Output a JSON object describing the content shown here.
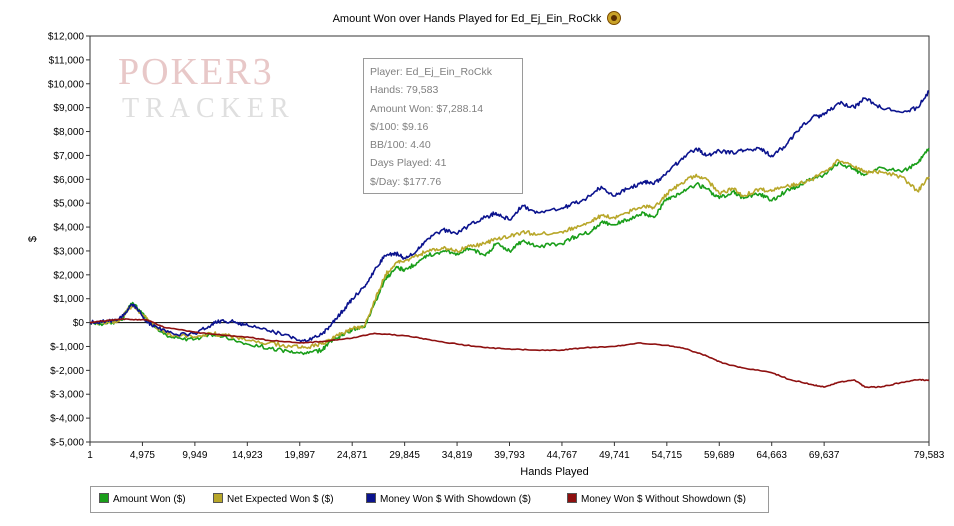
{
  "watermark": {
    "line1": "POKER3",
    "line2": "TRACKER"
  },
  "tooltip": {
    "player": "Player: Ed_Ej_Ein_RoCkk",
    "hands": "Hands: 79,583",
    "amount_won": "Amount Won: $7,288.14",
    "per100": "$/100: $9.16",
    "bb100": "BB/100: 4.40",
    "days_played": "Days Played: 41",
    "per_day": "$/Day: $177.76"
  },
  "chart_data": {
    "type": "line",
    "title": "Amount Won over Hands Played for Ed_Ej_Ein_RoCkk",
    "xlabel": "Hands Played",
    "ylabel": "$",
    "xlim": [
      1,
      79583
    ],
    "ylim": [
      -5000,
      12000
    ],
    "x_ticks": [
      1,
      4975,
      9949,
      14923,
      19897,
      24871,
      29845,
      34819,
      39793,
      44767,
      49741,
      54715,
      59689,
      64663,
      69637,
      79583
    ],
    "x_tick_labels": [
      "1",
      "4,975",
      "9,949",
      "14,923",
      "19,897",
      "24,871",
      "29,845",
      "34,819",
      "39,793",
      "44,767",
      "49,741",
      "54,715",
      "59,689",
      "64,663",
      "69,637",
      "79,583"
    ],
    "y_ticks": [
      12000,
      11000,
      10000,
      9000,
      8000,
      7000,
      6000,
      5000,
      4000,
      3000,
      2000,
      1000,
      0,
      -1000,
      -2000,
      -3000,
      -4000,
      -5000
    ],
    "y_tick_labels": [
      "$12,000",
      "$11,000",
      "$10,000",
      "$9,000",
      "$8,000",
      "$7,000",
      "$6,000",
      "$5,000",
      "$4,000",
      "$3,000",
      "$2,000",
      "$1,000",
      "$0",
      "$-1,000",
      "$-2,000",
      "$-3,000",
      "$-4,000",
      "$-5,000"
    ],
    "grid": false,
    "legend_position": "bottom",
    "series": [
      {
        "name": "Amount Won ($)",
        "color": "#1a9e1a",
        "x": [
          1,
          1500,
          3000,
          3500,
          4000,
          4500,
          5500,
          6500,
          8000,
          9949,
          11500,
          13000,
          14923,
          17000,
          19000,
          20500,
          22000,
          23000,
          24000,
          24871,
          26000,
          27000,
          28000,
          29000,
          29845,
          31000,
          32000,
          33500,
          34819,
          36000,
          37500,
          38500,
          39793,
          41000,
          42500,
          44767,
          46000,
          47500,
          48500,
          49741,
          51000,
          52500,
          53500,
          54715,
          56000,
          57500,
          58500,
          59689,
          61000,
          62000,
          63500,
          64663,
          66000,
          67000,
          68500,
          69637,
          71000,
          72500,
          73500,
          75000,
          77000,
          78500,
          79583
        ],
        "y": [
          0,
          -50,
          100,
          500,
          800,
          600,
          100,
          -350,
          -650,
          -700,
          -500,
          -650,
          -900,
          -1050,
          -1250,
          -1300,
          -1150,
          -750,
          -500,
          -300,
          -200,
          800,
          1800,
          2300,
          2200,
          2500,
          2800,
          3000,
          2900,
          3100,
          2800,
          3300,
          3000,
          3400,
          3200,
          3300,
          3600,
          3800,
          4200,
          4100,
          4300,
          4600,
          4400,
          5200,
          5400,
          5800,
          5600,
          5200,
          5500,
          5200,
          5400,
          5100,
          5500,
          5700,
          6000,
          6200,
          6700,
          6400,
          6200,
          6500,
          6300,
          6700,
          7300
        ]
      },
      {
        "name": "Net Expected Won $ ($)",
        "color": "#b8a72a",
        "x": [
          1,
          1500,
          3000,
          3500,
          4000,
          4500,
          5500,
          6500,
          8000,
          9949,
          11500,
          13000,
          14923,
          17000,
          19000,
          20500,
          22000,
          23000,
          24000,
          24871,
          26000,
          27000,
          28000,
          29000,
          29845,
          31000,
          32000,
          33500,
          34819,
          36000,
          37500,
          38500,
          39793,
          41000,
          42500,
          44767,
          46000,
          47500,
          48500,
          49741,
          51000,
          52500,
          53500,
          54715,
          56000,
          57500,
          58500,
          59689,
          61000,
          62000,
          63500,
          64663,
          66000,
          67000,
          68500,
          69637,
          71000,
          72500,
          73500,
          75000,
          77000,
          78500,
          79583
        ],
        "y": [
          0,
          -50,
          150,
          500,
          700,
          550,
          100,
          -300,
          -550,
          -600,
          -450,
          -550,
          -750,
          -850,
          -1000,
          -1050,
          -900,
          -650,
          -450,
          -250,
          -150,
          900,
          2000,
          2500,
          2600,
          2800,
          3000,
          3100,
          3000,
          3200,
          3300,
          3500,
          3600,
          3800,
          3700,
          3800,
          4000,
          4200,
          4500,
          4400,
          4600,
          4900,
          4800,
          5400,
          5800,
          6200,
          6000,
          5400,
          5600,
          5300,
          5600,
          5500,
          5700,
          5800,
          6000,
          6300,
          6800,
          6500,
          6300,
          6300,
          6100,
          5500,
          6100
        ]
      },
      {
        "name": "Money Won $ With Showdown ($)",
        "color": "#0b138e",
        "x": [
          1,
          1500,
          3000,
          4000,
          4500,
          5500,
          6500,
          8000,
          9949,
          11500,
          12500,
          14000,
          14923,
          17000,
          19000,
          20500,
          22000,
          23000,
          24000,
          24871,
          26000,
          27000,
          28000,
          29000,
          29845,
          31000,
          32000,
          33500,
          34819,
          36000,
          37500,
          38500,
          39793,
          41000,
          42500,
          44767,
          46000,
          47500,
          48500,
          49741,
          51000,
          52500,
          53500,
          54715,
          56000,
          57500,
          58500,
          59689,
          61000,
          62000,
          63500,
          64663,
          66000,
          67000,
          68500,
          69637,
          71000,
          72500,
          73500,
          75000,
          77000,
          78500,
          79583
        ],
        "y": [
          0,
          50,
          200,
          750,
          550,
          0,
          -250,
          -500,
          -450,
          -100,
          100,
          0,
          -100,
          -350,
          -600,
          -800,
          -500,
          0,
          500,
          1000,
          1500,
          2200,
          2800,
          2900,
          2700,
          3000,
          3500,
          3900,
          3700,
          4100,
          4400,
          4600,
          4300,
          4900,
          4600,
          4800,
          5000,
          5300,
          5700,
          5300,
          5600,
          5900,
          5800,
          6300,
          6800,
          7300,
          7000,
          7200,
          7100,
          7200,
          7300,
          7000,
          7400,
          8000,
          8600,
          8700,
          9200,
          9000,
          9400,
          9000,
          8800,
          9000,
          9700
        ]
      },
      {
        "name": "Money Won $ Without Showdown ($)",
        "color": "#8e1010",
        "x": [
          1,
          2000,
          3500,
          5500,
          7000,
          9949,
          12000,
          14923,
          17000,
          19897,
          22000,
          24871,
          27000,
          29845,
          32000,
          34819,
          37500,
          39793,
          42000,
          44767,
          47000,
          49741,
          52000,
          54715,
          56500,
          58500,
          60000,
          62000,
          64663,
          66500,
          68500,
          69637,
          71000,
          72500,
          73500,
          75000,
          77000,
          78500,
          79583
        ],
        "y": [
          0,
          100,
          150,
          100,
          -200,
          -400,
          -500,
          -600,
          -750,
          -850,
          -800,
          -650,
          -450,
          -550,
          -700,
          -900,
          -1050,
          -1100,
          -1150,
          -1150,
          -1050,
          -1000,
          -850,
          -950,
          -1100,
          -1400,
          -1700,
          -1900,
          -2100,
          -2400,
          -2600,
          -2700,
          -2500,
          -2400,
          -2700,
          -2700,
          -2500,
          -2400,
          -2400
        ]
      }
    ]
  }
}
